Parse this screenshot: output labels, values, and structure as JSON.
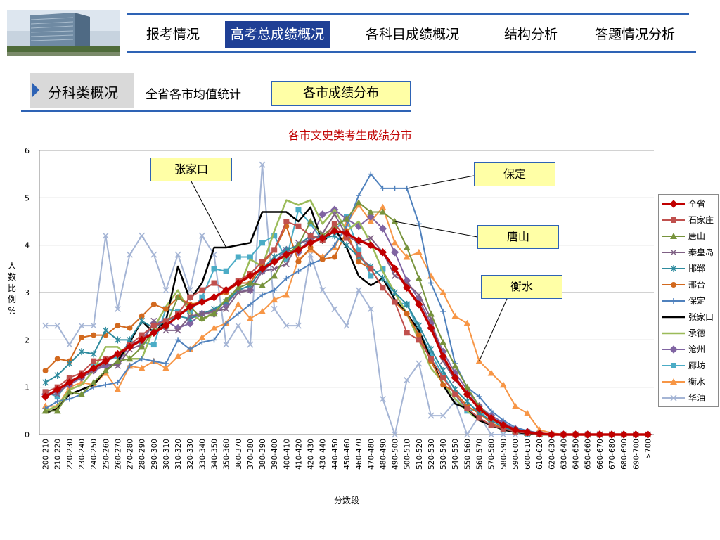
{
  "nav": {
    "items": [
      "报考情况",
      "高考总成绩概况",
      "各科目成绩概况",
      "结构分析",
      "答题情况分析"
    ],
    "active_index": 1
  },
  "subnav": {
    "section": "分科类概况",
    "link": "全省各市均值统计",
    "active": "各市成绩分布"
  },
  "colors": {
    "accent": "#2e63b5",
    "nav_active": "#1f3f95",
    "title": "#c00000",
    "callout_bg": "#ffffa6"
  },
  "chart_data": {
    "type": "line",
    "title": "各市文史类考生成绩分市",
    "xlabel": "分数段",
    "ylabel": "人数比例%",
    "ylim": [
      0,
      6
    ],
    "yticks": [
      0,
      1,
      2,
      3,
      4,
      5,
      6
    ],
    "grid": true,
    "legend": "right",
    "categories": [
      "200-210",
      "210-220",
      "220-230",
      "230-240",
      "240-250",
      "250-260",
      "260-270",
      "270-280",
      "280-290",
      "290-300",
      "300-310",
      "310-320",
      "320-330",
      "330-340",
      "340-350",
      "350-360",
      "360-370",
      "370-380",
      "380-390",
      "390-400",
      "400-410",
      "410-420",
      "420-430",
      "430-440",
      "440-450",
      "450-460",
      "460-470",
      "470-480",
      "480-490",
      "490-500",
      "500-510",
      "510-520",
      "520-530",
      "530-540",
      "540-550",
      "550-560",
      "560-570",
      "570-580",
      "580-590",
      "590-600",
      "600-610",
      "610-620",
      "620-630",
      "630-640",
      "640-650",
      "650-660",
      "660-670",
      "670-680",
      "680-690",
      "690-700",
      ">700"
    ],
    "series": [
      {
        "name": "全省",
        "color": "#c00000",
        "marker": "diamond",
        "width": 3.5,
        "values": [
          0.8,
          0.95,
          1.1,
          1.25,
          1.4,
          1.55,
          1.7,
          1.85,
          2.0,
          2.15,
          2.3,
          2.5,
          2.7,
          2.8,
          2.9,
          3.05,
          3.2,
          3.35,
          3.5,
          3.65,
          3.8,
          3.9,
          4.05,
          4.15,
          4.3,
          4.25,
          4.1,
          4.0,
          3.85,
          3.5,
          3.1,
          2.75,
          2.25,
          1.65,
          1.2,
          0.85,
          0.55,
          0.35,
          0.2,
          0.1,
          0.05,
          0.02,
          0.0,
          0.0,
          0.0,
          0.0,
          0.0,
          0.0,
          0.0,
          0.0,
          0.0
        ]
      },
      {
        "name": "石家庄",
        "color": "#c0504d",
        "marker": "square",
        "width": 2,
        "values": [
          0.9,
          1.0,
          1.2,
          1.3,
          1.55,
          1.6,
          1.7,
          1.9,
          2.1,
          2.3,
          2.4,
          2.55,
          2.9,
          3.05,
          3.2,
          3.05,
          3.25,
          3.4,
          3.65,
          3.9,
          4.5,
          4.4,
          4.2,
          4.1,
          4.45,
          4.15,
          3.8,
          3.5,
          3.1,
          2.8,
          2.15,
          2.0,
          1.6,
          1.2,
          0.85,
          0.55,
          0.35,
          0.2,
          0.12,
          0.06,
          0.03,
          0.01,
          0.0,
          0.0,
          0.0,
          0.0,
          0.0,
          0.0,
          0.0,
          0.0,
          0.0
        ]
      },
      {
        "name": "唐山",
        "color": "#77933c",
        "marker": "triangle",
        "width": 2,
        "values": [
          0.5,
          0.5,
          0.9,
          0.85,
          1.1,
          1.35,
          1.55,
          1.6,
          1.85,
          2.2,
          2.3,
          2.9,
          2.7,
          2.45,
          2.55,
          2.85,
          3.1,
          3.2,
          3.15,
          3.35,
          3.8,
          4.0,
          4.5,
          4.2,
          4.4,
          4.55,
          4.9,
          4.7,
          4.7,
          4.5,
          3.95,
          3.3,
          2.55,
          1.95,
          1.45,
          1.0,
          0.6,
          0.35,
          0.2,
          0.08,
          0.03,
          0.01,
          0.0,
          0.0,
          0.0,
          0.0,
          0.0,
          0.0,
          0.0,
          0.0,
          0.0
        ]
      },
      {
        "name": "秦皇岛",
        "color": "#7f6084",
        "marker": "x",
        "width": 2,
        "values": [
          0.85,
          0.85,
          1.1,
          1.2,
          1.35,
          1.5,
          1.45,
          1.8,
          1.9,
          2.4,
          2.2,
          2.2,
          2.5,
          2.55,
          2.6,
          2.65,
          3.0,
          3.05,
          3.45,
          3.5,
          3.6,
          4.05,
          4.1,
          4.25,
          4.65,
          4.2,
          4.05,
          4.15,
          3.85,
          3.35,
          3.2,
          2.95,
          2.45,
          1.55,
          1.15,
          0.85,
          0.55,
          0.35,
          0.2,
          0.1,
          0.05,
          0.01,
          0.0,
          0.0,
          0.0,
          0.0,
          0.0,
          0.0,
          0.0,
          0.0,
          0.0
        ]
      },
      {
        "name": "邯郸",
        "color": "#2e8b9e",
        "marker": "star",
        "width": 2,
        "values": [
          1.1,
          1.25,
          1.5,
          1.75,
          1.7,
          2.2,
          2.0,
          2.0,
          2.4,
          2.25,
          2.4,
          2.5,
          2.45,
          2.55,
          2.65,
          2.8,
          3.05,
          3.15,
          3.5,
          3.75,
          3.9,
          4.0,
          4.2,
          4.15,
          4.2,
          4.0,
          3.75,
          3.55,
          3.3,
          3.0,
          2.75,
          2.3,
          1.8,
          1.35,
          0.95,
          0.7,
          0.45,
          0.3,
          0.15,
          0.08,
          0.03,
          0.01,
          0.0,
          0.0,
          0.0,
          0.0,
          0.0,
          0.0,
          0.0,
          0.0,
          0.0
        ]
      },
      {
        "name": "邢台",
        "color": "#d2691e",
        "marker": "circle",
        "width": 2,
        "values": [
          1.35,
          1.6,
          1.55,
          2.05,
          2.1,
          2.1,
          2.3,
          2.25,
          2.5,
          2.75,
          2.65,
          2.9,
          2.75,
          2.8,
          2.9,
          3.0,
          3.2,
          3.2,
          3.6,
          3.9,
          4.4,
          3.65,
          3.95,
          3.7,
          3.75,
          4.3,
          3.65,
          3.5,
          3.1,
          2.8,
          2.55,
          2.1,
          1.55,
          1.05,
          0.9,
          0.6,
          0.45,
          0.25,
          0.12,
          0.08,
          0.04,
          0.01,
          0.0,
          0.0,
          0.0,
          0.0,
          0.0,
          0.0,
          0.0,
          0.0,
          0.0
        ]
      },
      {
        "name": "保定",
        "color": "#4f81bd",
        "marker": "plus",
        "width": 2,
        "values": [
          0.55,
          0.7,
          0.75,
          0.85,
          1.0,
          1.05,
          1.1,
          1.45,
          1.6,
          1.55,
          1.5,
          2.0,
          1.8,
          1.95,
          2.0,
          2.35,
          2.55,
          2.75,
          2.95,
          3.05,
          3.3,
          3.45,
          3.6,
          3.7,
          4.0,
          4.4,
          5.05,
          5.5,
          5.2,
          5.2,
          5.2,
          4.45,
          3.2,
          2.6,
          1.5,
          1.0,
          0.8,
          0.5,
          0.3,
          0.15,
          0.08,
          0.03,
          0.0,
          0.0,
          0.0,
          0.0,
          0.0,
          0.0,
          0.0,
          0.0,
          0.0
        ]
      },
      {
        "name": "张家口",
        "color": "#000000",
        "marker": "none",
        "width": 2.5,
        "values": [
          0.45,
          0.55,
          0.85,
          0.95,
          1.05,
          1.35,
          1.55,
          1.95,
          2.4,
          2.15,
          2.4,
          3.55,
          2.85,
          3.2,
          3.95,
          3.95,
          4.0,
          4.05,
          4.7,
          4.7,
          4.7,
          4.5,
          4.8,
          4.05,
          4.35,
          3.95,
          3.35,
          3.15,
          3.3,
          2.85,
          2.55,
          2.2,
          1.6,
          1.05,
          0.65,
          0.55,
          0.3,
          0.2,
          0.1,
          0.05,
          0.02,
          0.0,
          0.0,
          0.0,
          0.0,
          0.0,
          0.0,
          0.0,
          0.0,
          0.0,
          0.0
        ]
      },
      {
        "name": "承德",
        "color": "#9bbb59",
        "marker": "none",
        "width": 2.5,
        "values": [
          0.5,
          0.6,
          0.95,
          1.05,
          1.35,
          1.85,
          1.85,
          1.6,
          1.6,
          2.25,
          2.7,
          3.05,
          2.55,
          2.4,
          2.6,
          2.85,
          3.05,
          3.7,
          3.55,
          4.3,
          4.95,
          4.85,
          4.95,
          4.45,
          4.75,
          4.3,
          4.5,
          4.05,
          3.45,
          3.0,
          2.55,
          2.0,
          1.4,
          1.1,
          0.75,
          0.5,
          0.3,
          0.2,
          0.1,
          0.05,
          0.02,
          0.0,
          0.0,
          0.0,
          0.0,
          0.0,
          0.0,
          0.0,
          0.0,
          0.0,
          0.0
        ]
      },
      {
        "name": "沧州",
        "color": "#8064a2",
        "marker": "diamond",
        "width": 2,
        "values": [
          0.85,
          0.9,
          1.05,
          1.2,
          1.35,
          1.45,
          1.5,
          1.9,
          2.0,
          2.35,
          2.4,
          2.25,
          2.35,
          2.55,
          2.55,
          2.75,
          3.05,
          3.05,
          3.45,
          3.65,
          3.9,
          3.85,
          4.15,
          4.65,
          4.75,
          4.55,
          4.4,
          4.6,
          4.35,
          3.85,
          3.25,
          2.85,
          2.35,
          1.75,
          1.3,
          0.95,
          0.6,
          0.4,
          0.25,
          0.12,
          0.06,
          0.02,
          0.0,
          0.0,
          0.0,
          0.0,
          0.0,
          0.0,
          0.0,
          0.0,
          0.0
        ]
      },
      {
        "name": "廊坊",
        "color": "#4bacc6",
        "marker": "square",
        "width": 2,
        "values": [
          0.9,
          0.8,
          1.15,
          1.2,
          1.45,
          1.55,
          1.65,
          1.95,
          1.95,
          1.9,
          2.65,
          2.6,
          2.6,
          2.9,
          3.5,
          3.45,
          3.75,
          3.75,
          4.05,
          4.2,
          3.7,
          4.75,
          4.45,
          4.1,
          4.3,
          4.6,
          3.9,
          3.35,
          3.5,
          2.8,
          2.75,
          2.2,
          1.7,
          1.25,
          0.85,
          0.5,
          0.55,
          0.2,
          0.1,
          0.05,
          0.02,
          0.0,
          0.0,
          0.0,
          0.0,
          0.0,
          0.0,
          0.0,
          0.0,
          0.0,
          0.0
        ]
      },
      {
        "name": "衡水",
        "color": "#f79646",
        "marker": "triangle",
        "width": 2,
        "values": [
          0.6,
          0.6,
          1.0,
          1.1,
          1.05,
          1.3,
          0.95,
          1.45,
          1.4,
          1.55,
          1.4,
          1.65,
          1.8,
          2.05,
          2.25,
          2.35,
          2.75,
          2.45,
          2.6,
          2.85,
          2.95,
          3.7,
          3.9,
          3.75,
          3.95,
          4.45,
          4.85,
          4.5,
          4.8,
          4.05,
          3.75,
          3.85,
          3.35,
          3.0,
          2.5,
          2.35,
          1.55,
          1.3,
          1.05,
          0.6,
          0.45,
          0.1,
          0.03,
          0.0,
          0.0,
          0.0,
          0.0,
          0.0,
          0.0,
          0.0,
          0.0
        ]
      },
      {
        "name": "华油",
        "color": "#a5b5d5",
        "marker": "x",
        "width": 2,
        "values": [
          2.3,
          2.3,
          1.9,
          2.3,
          2.3,
          4.2,
          2.65,
          3.8,
          4.2,
          3.8,
          3.05,
          3.8,
          3.05,
          4.2,
          3.8,
          1.9,
          2.3,
          1.9,
          5.7,
          2.65,
          2.3,
          2.3,
          3.8,
          3.05,
          2.65,
          2.3,
          3.05,
          2.65,
          0.75,
          0.0,
          1.15,
          1.5,
          0.4,
          0.4,
          0.7,
          0.0,
          0.4,
          0.0,
          0.0,
          0.0,
          0.0,
          0.0,
          0.0,
          0.0,
          0.0,
          0.0,
          0.0,
          0.0,
          0.0,
          0.0,
          0.0
        ]
      }
    ],
    "annotations": [
      {
        "text": "张家口",
        "target_category": "350-360",
        "target_value": 3.95
      },
      {
        "text": "保定",
        "target_category": "500-510",
        "target_value": 5.2
      },
      {
        "text": "唐山",
        "target_category": "490-500",
        "target_value": 4.5
      },
      {
        "text": "衡水",
        "target_category": "560-570",
        "target_value": 1.55
      }
    ]
  }
}
